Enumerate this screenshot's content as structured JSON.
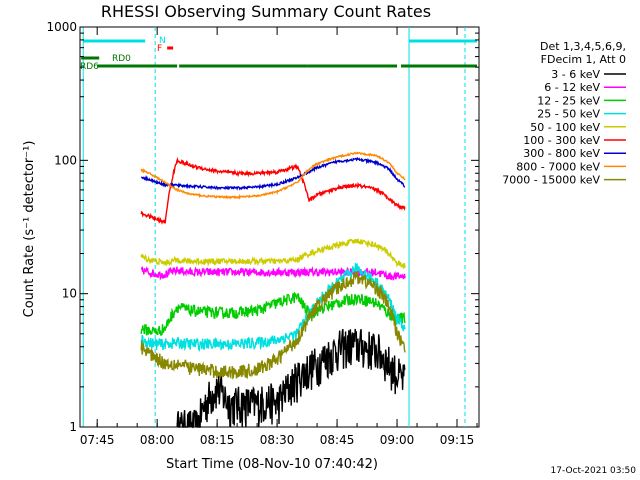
{
  "chart_data": {
    "type": "line",
    "title": "RHESSI Observing Summary Count Rates",
    "xlabel": "Start Time (08-Nov-10 07:40:42)",
    "ylabel": "Count Rate (s⁻¹ detector⁻¹)",
    "yscale": "log",
    "ylim": [
      1,
      1000
    ],
    "xlim": [
      "07:40:42",
      "09:20:30"
    ],
    "x_ticks": [
      "07:45",
      "08:00",
      "08:15",
      "08:30",
      "08:45",
      "09:00",
      "09:15"
    ],
    "y_ticks": [
      "1",
      "10",
      "100",
      "1000"
    ],
    "legend_header": [
      "Det 1,3,4,5,6,9,",
      "FDecim 1, Att 0"
    ],
    "legend_position": "right",
    "footer": "17-Oct-2021 03:50",
    "night_start": "07:41:30",
    "night_end": "09:03:00",
    "saa_lines": [
      "07:59:30",
      "09:17:00"
    ],
    "series": [
      {
        "name": "3 - 6 keV",
        "color": "#000000",
        "x": [
          "08:05",
          "08:08",
          "08:10",
          "08:12",
          "08:15",
          "08:18",
          "08:20",
          "08:22",
          "08:25",
          "08:28",
          "08:30",
          "08:33",
          "08:36",
          "08:40",
          "08:43",
          "08:46",
          "08:49",
          "08:52",
          "08:55",
          "08:58",
          "09:00",
          "09:02"
        ],
        "y": [
          1,
          1,
          1,
          1.5,
          2,
          1.5,
          1.5,
          1.5,
          1.5,
          1.6,
          1.5,
          2,
          2.5,
          3,
          3.5,
          4,
          4.2,
          4,
          3.8,
          3,
          2.5,
          2.2
        ]
      },
      {
        "name": "6 - 12 keV",
        "color": "#ff00ff",
        "x": [
          "07:56",
          "07:58",
          "08:00",
          "08:02",
          "08:05",
          "08:08",
          "08:12",
          "08:16",
          "08:20",
          "08:25",
          "08:30",
          "08:35",
          "08:38",
          "08:40",
          "08:45",
          "08:50",
          "08:55",
          "08:58",
          "09:00",
          "09:02"
        ],
        "y": [
          15,
          14.5,
          14,
          14,
          15,
          14.5,
          14.5,
          14.5,
          14.5,
          14.5,
          14.5,
          14.5,
          14.5,
          14.5,
          14.5,
          14.5,
          14.5,
          13.5,
          13.5,
          13.5
        ]
      },
      {
        "name": "12 - 25 keV",
        "color": "#00cc00",
        "x": [
          "07:56",
          "07:58",
          "08:00",
          "08:02",
          "08:05",
          "08:08",
          "08:12",
          "08:16",
          "08:20",
          "08:25",
          "08:30",
          "08:35",
          "08:38",
          "08:40",
          "08:45",
          "08:50",
          "08:55",
          "08:58",
          "09:00",
          "09:02"
        ],
        "y": [
          5.5,
          5.3,
          5.2,
          5.5,
          8,
          7.5,
          7.3,
          7.2,
          7.2,
          7.5,
          8.5,
          9.5,
          7,
          7.5,
          8.5,
          9.3,
          8.5,
          7,
          6.5,
          6.5
        ]
      },
      {
        "name": "25 - 50 keV",
        "color": "#00e0e0",
        "x": [
          "07:56",
          "07:58",
          "08:00",
          "08:02",
          "08:05",
          "08:08",
          "08:12",
          "08:16",
          "08:20",
          "08:25",
          "08:30",
          "08:35",
          "08:38",
          "08:40",
          "08:45",
          "08:50",
          "08:55",
          "08:58",
          "09:00",
          "09:02"
        ],
        "y": [
          4.5,
          4.3,
          4.2,
          4.2,
          4.3,
          4.2,
          4.2,
          4.2,
          4.2,
          4.3,
          4.5,
          5,
          7,
          8.5,
          12,
          15.5,
          12,
          9,
          6.5,
          5.5
        ]
      },
      {
        "name": "50 - 100 keV",
        "color": "#cccc00",
        "x": [
          "07:56",
          "07:58",
          "08:00",
          "08:02",
          "08:05",
          "08:08",
          "08:12",
          "08:16",
          "08:20",
          "08:25",
          "08:30",
          "08:35",
          "08:38",
          "08:40",
          "08:45",
          "08:50",
          "08:55",
          "08:58",
          "09:00",
          "09:02"
        ],
        "y": [
          19,
          18,
          17.5,
          17,
          18,
          17.5,
          17.5,
          17.5,
          17.5,
          17.5,
          17.5,
          18,
          20,
          21,
          23,
          25,
          23,
          20,
          17,
          16
        ]
      },
      {
        "name": "100 - 300 keV",
        "color": "#ff0000",
        "x": [
          "07:56",
          "07:58",
          "08:00",
          "08:02",
          "08:05",
          "08:08",
          "08:12",
          "08:16",
          "08:20",
          "08:25",
          "08:30",
          "08:35",
          "08:38",
          "08:40",
          "08:45",
          "08:50",
          "08:55",
          "08:58",
          "09:00",
          "09:02"
        ],
        "y": [
          40,
          38,
          36,
          34,
          100,
          92,
          86,
          82,
          80,
          80,
          82,
          90,
          50,
          55,
          62,
          65,
          60,
          52,
          46,
          44
        ]
      },
      {
        "name": "300 - 800 keV",
        "color": "#0000cc",
        "x": [
          "07:56",
          "07:58",
          "08:00",
          "08:02",
          "08:05",
          "08:08",
          "08:12",
          "08:16",
          "08:20",
          "08:25",
          "08:30",
          "08:35",
          "08:38",
          "08:40",
          "08:45",
          "08:50",
          "08:55",
          "08:58",
          "09:00",
          "09:02"
        ],
        "y": [
          75,
          72,
          68,
          66,
          65,
          64,
          63,
          62,
          62,
          63,
          66,
          74,
          82,
          88,
          98,
          102,
          96,
          86,
          72,
          64
        ]
      },
      {
        "name": "800 - 7000 keV",
        "color": "#ff8800",
        "x": [
          "07:56",
          "07:58",
          "08:00",
          "08:02",
          "08:05",
          "08:08",
          "08:12",
          "08:16",
          "08:20",
          "08:25",
          "08:30",
          "08:35",
          "08:38",
          "08:40",
          "08:45",
          "08:50",
          "08:55",
          "08:58",
          "09:00",
          "09:02"
        ],
        "y": [
          85,
          80,
          74,
          68,
          60,
          56,
          54,
          53,
          53,
          54,
          58,
          68,
          86,
          94,
          106,
          114,
          108,
          96,
          80,
          72
        ]
      },
      {
        "name": "7000 - 15000 keV",
        "color": "#888800",
        "x": [
          "07:56",
          "07:58",
          "08:00",
          "08:02",
          "08:05",
          "08:08",
          "08:12",
          "08:16",
          "08:20",
          "08:25",
          "08:30",
          "08:35",
          "08:38",
          "08:40",
          "08:45",
          "08:50",
          "08:55",
          "08:58",
          "09:00",
          "09:02"
        ],
        "y": [
          4,
          3.6,
          3.3,
          3,
          3,
          2.8,
          2.7,
          2.6,
          2.6,
          2.7,
          3.2,
          4.5,
          6.5,
          8,
          11,
          13.5,
          11,
          8,
          5,
          4
        ]
      }
    ],
    "state_bars": [
      {
        "label": "N",
        "color": "#00e0e0",
        "segments": [
          [
            "07:41:30",
            "07:57:00"
          ],
          [
            "09:03:00",
            "09:20:00"
          ]
        ]
      },
      {
        "label": "F",
        "color": "#ff0000",
        "segments": [
          [
            "08:02:30",
            "08:04:00"
          ]
        ]
      },
      {
        "label": "RD0",
        "color": "#007700",
        "segments": [
          [
            "07:41:00",
            "07:45:30"
          ]
        ]
      },
      {
        "label": "RD6",
        "color": "#007700",
        "segments": [
          [
            "07:45:00",
            "08:05:00"
          ],
          [
            "08:05:30",
            "08:37:30"
          ],
          [
            "08:37:30",
            "09:00:00"
          ],
          [
            "09:01:00",
            "09:20:00"
          ]
        ]
      }
    ]
  }
}
